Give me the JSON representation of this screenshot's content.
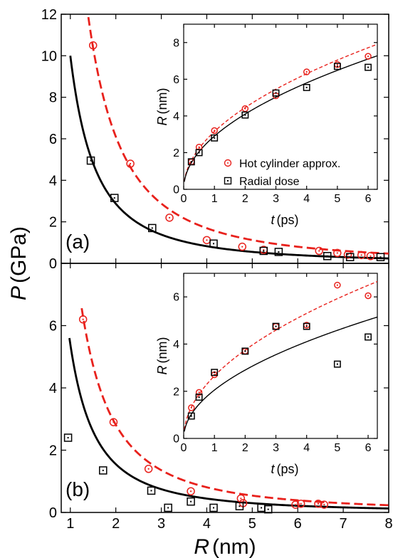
{
  "figure": {
    "ylabel_main": "P",
    "ylabel_unit": "(GPa)",
    "xlabel_main": "R",
    "xlabel_unit": "(nm)"
  },
  "colors": {
    "red": "#e8211c",
    "black": "#000000"
  },
  "chart_data": [
    {
      "id": "a-main",
      "type": "scatter",
      "panel_label": "(a)",
      "xlim": [
        0.8,
        8
      ],
      "ylim": [
        0,
        12
      ],
      "xticks": [
        1,
        2,
        3,
        4,
        5,
        6,
        7,
        8
      ],
      "yticks": [
        0,
        2,
        4,
        6,
        8,
        10,
        12
      ],
      "ytick_labels": [
        "0",
        "2",
        "4",
        "6",
        "8",
        "10",
        "12"
      ],
      "show_xtick_labels": false,
      "series": [
        {
          "key": "hot",
          "marker": "circle-dot",
          "color": "red",
          "x": [
            1.5,
            2.32,
            3.18,
            4.0,
            4.78,
            5.25,
            6.47,
            6.87,
            7.1,
            7.4,
            7.6
          ],
          "y": [
            10.5,
            4.8,
            2.2,
            1.12,
            0.8,
            0.65,
            0.6,
            0.5,
            0.42,
            0.4,
            0.35
          ]
        },
        {
          "key": "radial",
          "marker": "square-dot",
          "color": "black",
          "x": [
            1.45,
            1.97,
            2.8,
            4.15,
            5.25,
            5.58,
            6.65,
            7.15,
            7.82
          ],
          "y": [
            4.95,
            3.15,
            1.7,
            0.95,
            0.6,
            0.55,
            0.35,
            0.3,
            0.3
          ]
        },
        {
          "key": "hot-fit",
          "line": "dashed",
          "color": "red",
          "a": 22,
          "b": 1.85,
          "x0": 1.0,
          "x1": 8
        },
        {
          "key": "radial-fit",
          "line": "solid",
          "color": "black",
          "a": 10,
          "b": 1.8,
          "x0": 1.0,
          "x1": 8
        }
      ]
    },
    {
      "id": "a-inset",
      "type": "scatter",
      "xlim": [
        0,
        6.3
      ],
      "ylim": [
        0,
        9
      ],
      "xticks": [
        0,
        1,
        2,
        3,
        4,
        5,
        6
      ],
      "yticks": [
        0,
        2,
        4,
        6,
        8
      ],
      "ylabel_main": "R",
      "ylabel_unit": "(nm)",
      "xlabel_main": "t",
      "xlabel_unit": "(ps)",
      "legend": [
        "Hot cylinder approx.",
        "Radial dose"
      ],
      "series": [
        {
          "key": "hot",
          "marker": "circle-dot",
          "color": "red",
          "x": [
            0.25,
            0.5,
            1,
            2,
            3,
            4,
            5,
            6
          ],
          "y": [
            1.5,
            2.3,
            3.2,
            4.4,
            5.1,
            6.4,
            6.8,
            7.25
          ]
        },
        {
          "key": "radial",
          "marker": "square-dot",
          "color": "black",
          "x": [
            0.25,
            0.5,
            1,
            2,
            3,
            4,
            5,
            6
          ],
          "y": [
            1.5,
            2.0,
            2.8,
            4.05,
            5.25,
            5.55,
            6.7,
            6.65
          ]
        },
        {
          "key": "hot-fit",
          "line": "dashed-thin",
          "color": "red",
          "coef": 3.15,
          "pow": 0.5,
          "x0": 0.02,
          "x1": 6.3
        },
        {
          "key": "radial-fit",
          "line": "solid-thin",
          "color": "black",
          "coef": 2.9,
          "pow": 0.5,
          "x0": 0.02,
          "x1": 6.3
        }
      ]
    },
    {
      "id": "b-main",
      "type": "scatter",
      "panel_label": "(b)",
      "xlim": [
        0.8,
        8
      ],
      "ylim": [
        0,
        8
      ],
      "xticks": [
        1,
        2,
        3,
        4,
        5,
        6,
        7,
        8
      ],
      "yticks": [
        0,
        2,
        4,
        6
      ],
      "ytick_labels": [
        "0",
        "2",
        "4",
        "6"
      ],
      "xtick_labels": [
        "1",
        "2",
        "3",
        "4",
        "5",
        "6",
        "7",
        "8"
      ],
      "show_xtick_labels": true,
      "series": [
        {
          "key": "hot",
          "marker": "circle-dot",
          "color": "red",
          "x": [
            1.28,
            1.95,
            2.72,
            3.65,
            4.75,
            4.8,
            5.95,
            6.07,
            6.45,
            6.58
          ],
          "y": [
            6.2,
            2.9,
            1.4,
            0.68,
            0.45,
            0.3,
            0.25,
            0.28,
            0.28,
            0.25
          ]
        },
        {
          "key": "radial",
          "marker": "square-dot",
          "color": "black",
          "x": [
            0.95,
            1.72,
            2.78,
            3.15,
            3.65,
            4.15,
            4.72,
            5.2,
            5.35
          ],
          "y": [
            2.4,
            1.35,
            0.7,
            0.15,
            0.35,
            0.15,
            0.2,
            0.15,
            0.1
          ]
        },
        {
          "key": "hot-fit",
          "line": "dashed",
          "color": "red",
          "a": 9.8,
          "b": 1.8,
          "x0": 1.25,
          "x1": 8
        },
        {
          "key": "radial-fit",
          "line": "solid",
          "color": "black",
          "a": 5.4,
          "b": 1.8,
          "x0": 0.98,
          "x1": 8
        }
      ]
    },
    {
      "id": "b-inset",
      "type": "scatter",
      "xlim": [
        0,
        6.3
      ],
      "ylim": [
        0,
        7
      ],
      "xticks": [
        0,
        1,
        2,
        3,
        4,
        5,
        6
      ],
      "yticks": [
        0,
        2,
        4,
        6
      ],
      "ylabel_main": "R",
      "ylabel_unit": "(nm)",
      "xlabel_main": "t",
      "xlabel_unit": "(ps)",
      "series": [
        {
          "key": "hot",
          "marker": "circle-dot",
          "color": "red",
          "x": [
            0.25,
            0.5,
            1,
            2,
            3,
            4,
            5,
            6
          ],
          "y": [
            1.3,
            1.95,
            2.7,
            3.7,
            4.75,
            4.8,
            6.5,
            6.05
          ]
        },
        {
          "key": "radial",
          "marker": "square-dot",
          "color": "black",
          "x": [
            0.25,
            0.5,
            1,
            2,
            3,
            4,
            5,
            6
          ],
          "y": [
            0.95,
            1.75,
            2.8,
            3.7,
            4.75,
            4.75,
            3.15,
            4.3
          ]
        },
        {
          "key": "hot-fit",
          "line": "dashed-thin",
          "color": "red",
          "coef": 2.65,
          "pow": 0.5,
          "x0": 0.02,
          "x1": 6.3
        },
        {
          "key": "radial-fit",
          "line": "solid-thin",
          "color": "black",
          "coef": 2.05,
          "pow": 0.5,
          "x0": 0.02,
          "x1": 6.3
        }
      ]
    }
  ]
}
